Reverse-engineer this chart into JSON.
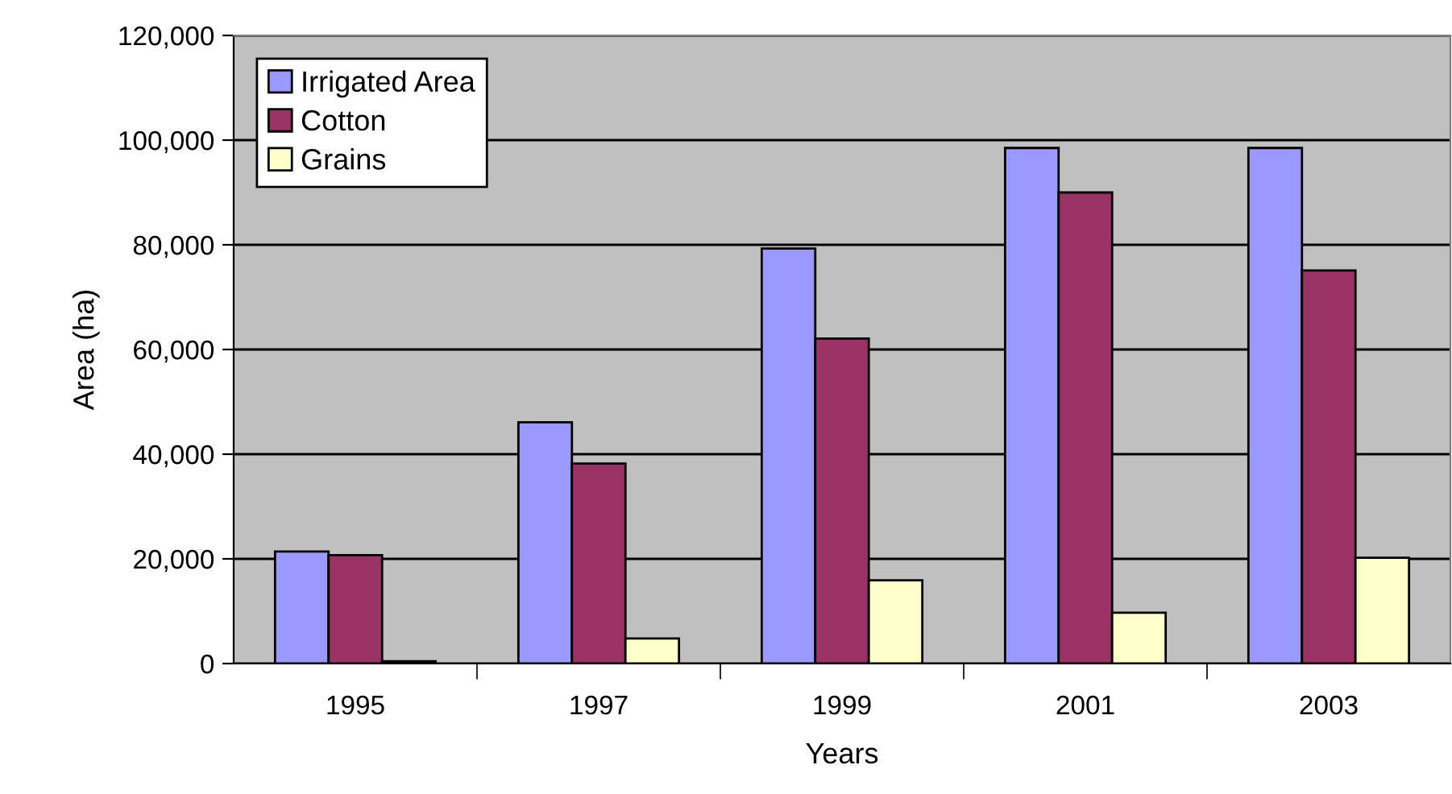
{
  "chart_data": {
    "type": "bar",
    "xlabel": "Years",
    "ylabel": "Area (ha)",
    "categories": [
      "1995",
      "1997",
      "1999",
      "2001",
      "2003"
    ],
    "series": [
      {
        "name": "Irrigated Area",
        "color": "#9999ff",
        "values": [
          21400,
          46100,
          79300,
          98500,
          98500
        ]
      },
      {
        "name": "Cotton",
        "color": "#993366",
        "values": [
          20700,
          38200,
          62100,
          90000,
          75100
        ]
      },
      {
        "name": "Grains",
        "color": "#ffffcc",
        "values": [
          450,
          4800,
          15900,
          9700,
          20200
        ]
      }
    ],
    "ylim": [
      0,
      120000
    ],
    "yticks": [
      {
        "value": 0,
        "label": "0"
      },
      {
        "value": 20000,
        "label": "20,000"
      },
      {
        "value": 40000,
        "label": "40,000"
      },
      {
        "value": 60000,
        "label": "60,000"
      },
      {
        "value": 80000,
        "label": "80,000"
      },
      {
        "value": 100000,
        "label": "100,000"
      },
      {
        "value": 120000,
        "label": "120,000"
      }
    ],
    "grid": "y",
    "legend": "top left"
  }
}
